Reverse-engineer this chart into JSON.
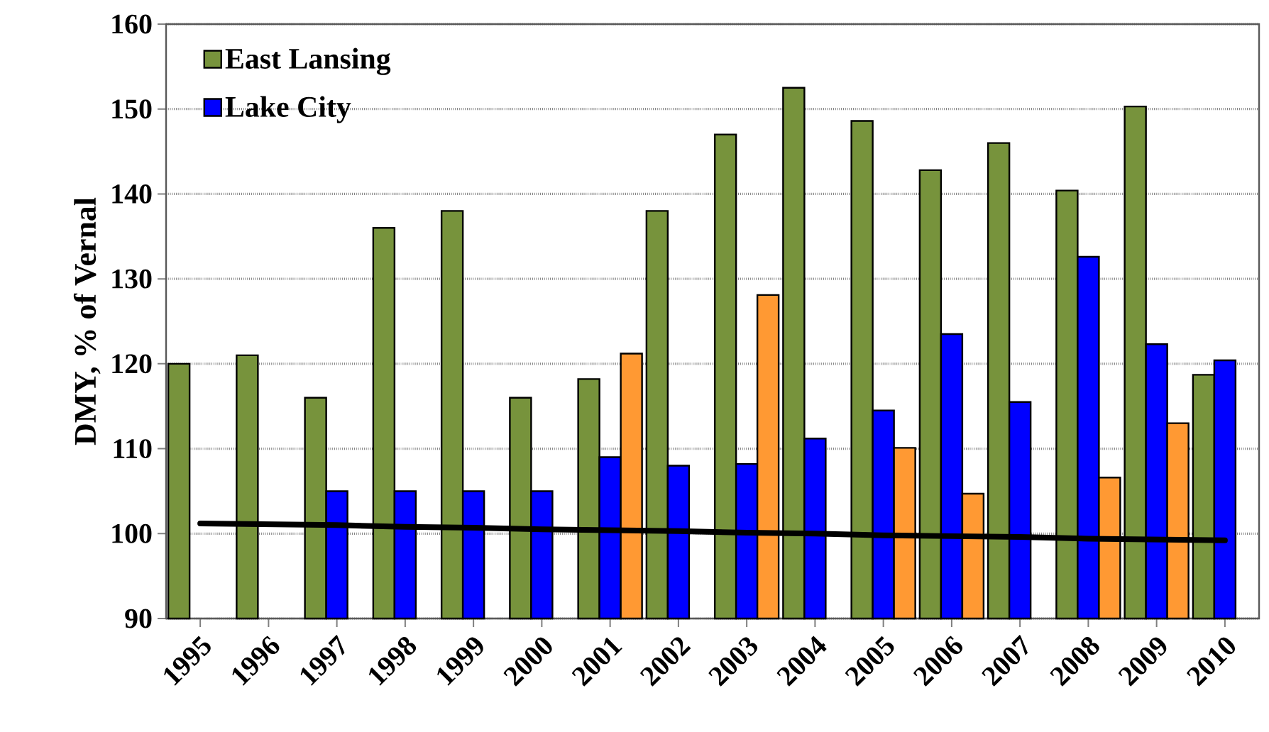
{
  "chart_data": {
    "type": "bar",
    "ylabel": "DMY, % of Vernal",
    "categories": [
      "1995",
      "1996",
      "1997",
      "1998",
      "1999",
      "2000",
      "2001",
      "2002",
      "2003",
      "2004",
      "2005",
      "2006",
      "2007",
      "2008",
      "2009",
      "2010"
    ],
    "series": [
      {
        "name": "East Lansing",
        "color": "#77933c",
        "values": [
          120,
          121,
          116,
          136,
          138,
          116,
          118.2,
          138,
          147,
          152.5,
          148.6,
          142.8,
          146,
          140.4,
          150.3,
          118.7
        ]
      },
      {
        "name": "Lake City",
        "color": "#0000ff",
        "values": [
          null,
          null,
          105,
          105,
          105,
          105,
          109,
          108,
          108.2,
          111.2,
          114.5,
          123.5,
          115.5,
          132.6,
          122.3,
          120.4
        ]
      },
      {
        "color": "#ff9933",
        "values": [
          null,
          null,
          null,
          null,
          null,
          null,
          121.2,
          null,
          128.1,
          null,
          110.1,
          104.7,
          null,
          106.6,
          113,
          null
        ]
      },
      {
        "type": "line",
        "color": "#000000",
        "values": [
          101.2,
          101.1,
          101.0,
          100.8,
          100.7,
          100.5,
          100.4,
          100.3,
          100.1,
          100.0,
          99.8,
          99.7,
          99.6,
          99.4,
          99.3,
          99.2
        ]
      }
    ],
    "ylim": [
      90,
      160
    ],
    "yticks": [
      90,
      100,
      110,
      120,
      130,
      140,
      150,
      160
    ],
    "grid": "y",
    "legend": "top left"
  }
}
